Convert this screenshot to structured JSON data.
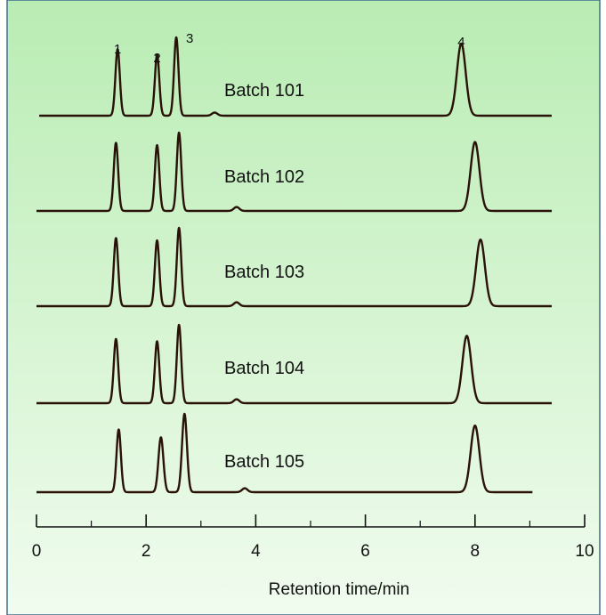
{
  "chart_data": {
    "type": "line",
    "title": "",
    "xlabel": "Retention time/min",
    "ylabel": "",
    "xlim": [
      0,
      10
    ],
    "x_ticks": [
      0,
      2,
      4,
      6,
      8,
      10
    ],
    "x_tick_labels": [
      "0",
      "2",
      "4",
      "6",
      "8",
      "10"
    ],
    "grid": false,
    "background_gradient": [
      "#b9ecb3",
      "#f1fcef"
    ],
    "trace_color": "#2a1208",
    "frame_color": "#3f6f8f",
    "peak_labels": [
      {
        "text": "1",
        "rt": 1.48
      },
      {
        "text": "2",
        "rt": 2.2
      },
      {
        "text": "3",
        "rt": 2.6
      },
      {
        "text": "4",
        "rt": 7.75
      }
    ],
    "series": [
      {
        "name": "Batch 101",
        "x_range": [
          0.05,
          9.4
        ],
        "peaks": [
          {
            "rt": 1.48,
            "height": 0.85,
            "width": 0.04
          },
          {
            "rt": 2.2,
            "height": 0.78,
            "width": 0.04
          },
          {
            "rt": 2.55,
            "height": 1.0,
            "width": 0.04
          },
          {
            "rt": 3.25,
            "height": 0.04,
            "width": 0.05
          },
          {
            "rt": 7.75,
            "height": 0.92,
            "width": 0.08
          }
        ]
      },
      {
        "name": "Batch 102",
        "x_range": [
          0.0,
          9.4
        ],
        "peaks": [
          {
            "rt": 1.45,
            "height": 0.87,
            "width": 0.04
          },
          {
            "rt": 2.2,
            "height": 0.84,
            "width": 0.04
          },
          {
            "rt": 2.6,
            "height": 1.0,
            "width": 0.04
          },
          {
            "rt": 3.65,
            "height": 0.05,
            "width": 0.05
          },
          {
            "rt": 8.0,
            "height": 0.88,
            "width": 0.08
          }
        ]
      },
      {
        "name": "Batch 103",
        "x_range": [
          0.0,
          9.4
        ],
        "peaks": [
          {
            "rt": 1.45,
            "height": 0.87,
            "width": 0.04
          },
          {
            "rt": 2.2,
            "height": 0.84,
            "width": 0.04
          },
          {
            "rt": 2.6,
            "height": 1.0,
            "width": 0.04
          },
          {
            "rt": 3.65,
            "height": 0.05,
            "width": 0.05
          },
          {
            "rt": 8.1,
            "height": 0.85,
            "width": 0.08
          }
        ]
      },
      {
        "name": "Batch 104",
        "x_range": [
          0.0,
          9.4
        ],
        "peaks": [
          {
            "rt": 1.45,
            "height": 0.82,
            "width": 0.04
          },
          {
            "rt": 2.2,
            "height": 0.79,
            "width": 0.04
          },
          {
            "rt": 2.6,
            "height": 1.0,
            "width": 0.04
          },
          {
            "rt": 3.65,
            "height": 0.05,
            "width": 0.05
          },
          {
            "rt": 7.85,
            "height": 0.86,
            "width": 0.08
          }
        ]
      },
      {
        "name": "Batch 105",
        "x_range": [
          0.0,
          9.05
        ],
        "peaks": [
          {
            "rt": 1.5,
            "height": 0.8,
            "width": 0.04
          },
          {
            "rt": 2.27,
            "height": 0.7,
            "width": 0.045
          },
          {
            "rt": 2.7,
            "height": 1.0,
            "width": 0.045
          },
          {
            "rt": 3.8,
            "height": 0.05,
            "width": 0.05
          },
          {
            "rt": 8.0,
            "height": 0.85,
            "width": 0.08
          }
        ]
      }
    ]
  }
}
